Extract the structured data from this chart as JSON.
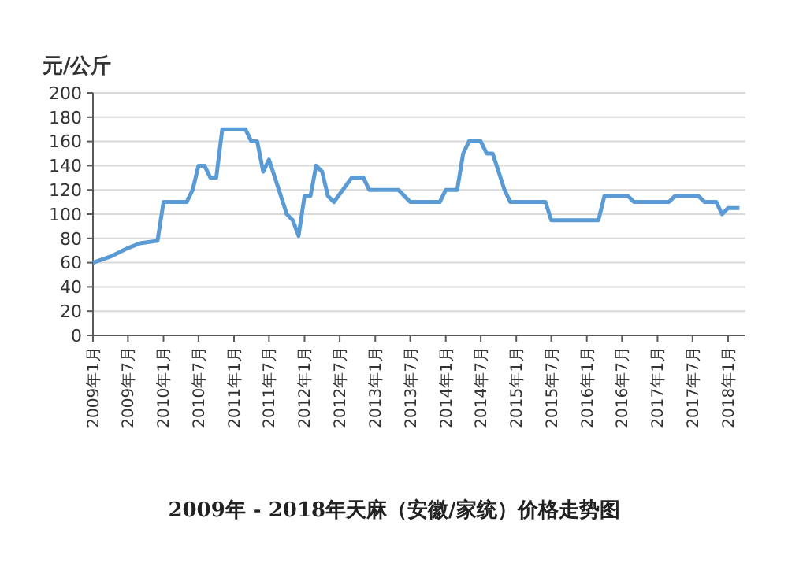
{
  "chart_data": {
    "type": "line",
    "title": "2009年 - 2018年天麻（安徽/家统）价格走势图",
    "ylabel": "元/公斤",
    "x": [
      "2009-01",
      "2009-04",
      "2009-07",
      "2009-09",
      "2009-12",
      "2010-01",
      "2010-05",
      "2010-06",
      "2010-07",
      "2010-08",
      "2010-09",
      "2010-10",
      "2010-11",
      "2011-03",
      "2011-04",
      "2011-05",
      "2011-06",
      "2011-07",
      "2011-08",
      "2011-10",
      "2011-11",
      "2011-12",
      "2012-01",
      "2012-02",
      "2012-03",
      "2012-04",
      "2012-05",
      "2012-06",
      "2012-09",
      "2012-11",
      "2012-12",
      "2013-05",
      "2013-07",
      "2013-12",
      "2014-01",
      "2014-03",
      "2014-04",
      "2014-05",
      "2014-07",
      "2014-08",
      "2014-09",
      "2014-11",
      "2014-12",
      "2015-06",
      "2015-07",
      "2016-03",
      "2016-04",
      "2016-08",
      "2016-09",
      "2017-03",
      "2017-04",
      "2017-08",
      "2017-09",
      "2017-11",
      "2017-12",
      "2018-01",
      "2018-03"
    ],
    "series": [
      {
        "color": "#5b9bd5",
        "values": [
          60,
          65,
          72,
          76,
          78,
          110,
          110,
          120,
          140,
          140,
          130,
          130,
          170,
          170,
          160,
          160,
          135,
          145,
          130,
          100,
          95,
          82,
          115,
          115,
          140,
          135,
          115,
          110,
          130,
          130,
          120,
          120,
          110,
          110,
          120,
          120,
          150,
          160,
          160,
          150,
          150,
          120,
          110,
          110,
          95,
          95,
          115,
          115,
          110,
          110,
          115,
          115,
          110,
          110,
          100,
          105,
          105
        ]
      }
    ],
    "xlim": [
      "2009-01",
      "2018-04"
    ],
    "xticks": [
      {
        "value": "2009-01",
        "label": "2009年1月"
      },
      {
        "value": "2009-07",
        "label": "2009年7月"
      },
      {
        "value": "2010-01",
        "label": "2010年1月"
      },
      {
        "value": "2010-07",
        "label": "2010年7月"
      },
      {
        "value": "2011-01",
        "label": "2011年1月"
      },
      {
        "value": "2011-07",
        "label": "2011年7月"
      },
      {
        "value": "2012-01",
        "label": "2012年1月"
      },
      {
        "value": "2012-07",
        "label": "2012年7月"
      },
      {
        "value": "2013-01",
        "label": "2013年1月"
      },
      {
        "value": "2013-07",
        "label": "2013年7月"
      },
      {
        "value": "2014-01",
        "label": "2014年1月"
      },
      {
        "value": "2014-07",
        "label": "2014年7月"
      },
      {
        "value": "2015-01",
        "label": "2015年1月"
      },
      {
        "value": "2015-07",
        "label": "2015年7月"
      },
      {
        "value": "2016-01",
        "label": "2016年1月"
      },
      {
        "value": "2016-07",
        "label": "2016年7月"
      },
      {
        "value": "2017-01",
        "label": "2017年1月"
      },
      {
        "value": "2017-07",
        "label": "2017年7月"
      },
      {
        "value": "2018-01",
        "label": "2018年1月"
      }
    ],
    "ylim": [
      0,
      200
    ],
    "yticks": [
      0,
      20,
      40,
      60,
      80,
      100,
      120,
      140,
      160,
      180,
      200
    ],
    "grid": "y",
    "marker": "none",
    "line_style": "solid"
  }
}
